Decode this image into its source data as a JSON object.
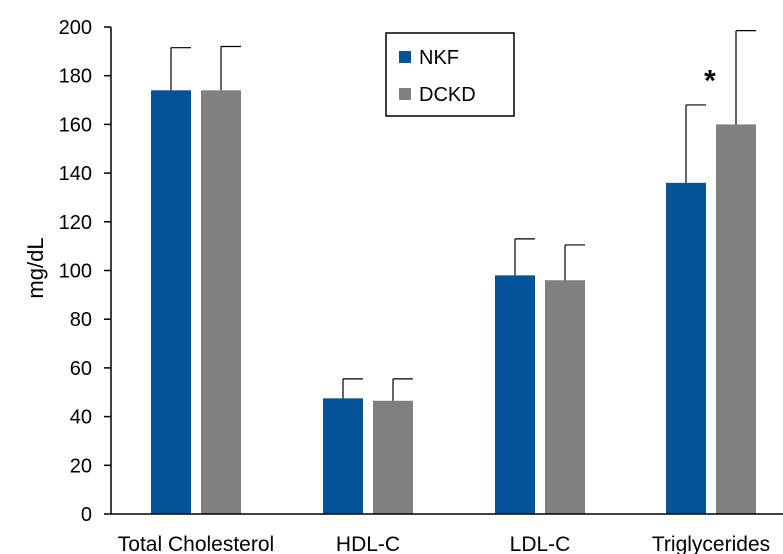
{
  "chart_data": {
    "type": "bar",
    "categories": [
      "Total Cholesterol",
      "HDL-C",
      "LDL-C",
      "Triglycerides"
    ],
    "ylabel": "mg/dL",
    "ylim": [
      0,
      200
    ],
    "yticks": [
      0,
      20,
      40,
      60,
      80,
      100,
      120,
      140,
      160,
      180,
      200
    ],
    "grid": false,
    "legend_position": "top-center",
    "series": [
      {
        "name": "NKF",
        "color": "#045399",
        "values": [
          174,
          47.5,
          98,
          136
        ],
        "error": [
          17.5,
          8,
          15,
          32
        ]
      },
      {
        "name": "DCKD",
        "color": "#808080",
        "values": [
          174,
          46.5,
          96,
          160
        ],
        "error": [
          18,
          9,
          14.5,
          38.5
        ]
      }
    ],
    "annotations": [
      {
        "text": "*",
        "category": "Triglycerides",
        "series": "DCKD"
      }
    ]
  }
}
